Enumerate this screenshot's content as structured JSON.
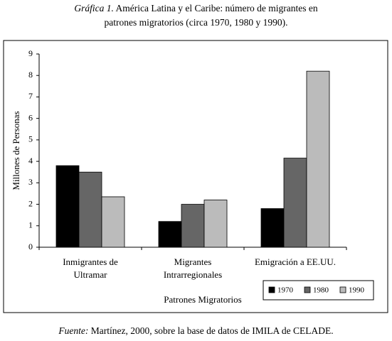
{
  "chart_data": {
    "type": "bar",
    "title_label": "Gráfica 1.",
    "title": "América Latina y el Caribe: número de migrantes en patrones migratorios (circa 1970, 1980 y 1990).",
    "source_label": "Fuente:",
    "source": "Martínez, 2000, sobre la base de datos de IMILA de CELADE.",
    "categories": [
      "Inmigrantes de\nUltramar",
      "Migrantes\nIntrarregionales",
      "Emigración a EE.UU."
    ],
    "series": [
      {
        "name": "1970",
        "color": "#000000",
        "values": [
          3.8,
          1.2,
          1.8
        ]
      },
      {
        "name": "1980",
        "color": "#666666",
        "values": [
          3.5,
          2.0,
          4.15
        ]
      },
      {
        "name": "1990",
        "color": "#bbbbbb",
        "values": [
          2.35,
          2.2,
          8.2
        ]
      }
    ],
    "ylim": [
      0,
      9
    ],
    "yticks": [
      0,
      1,
      2,
      3,
      4,
      5,
      6,
      7,
      8,
      9
    ],
    "ylabel": "Millones de Personas",
    "xlabel": "Patrones Migratorios",
    "legend": "bottom-right",
    "grid": false
  }
}
